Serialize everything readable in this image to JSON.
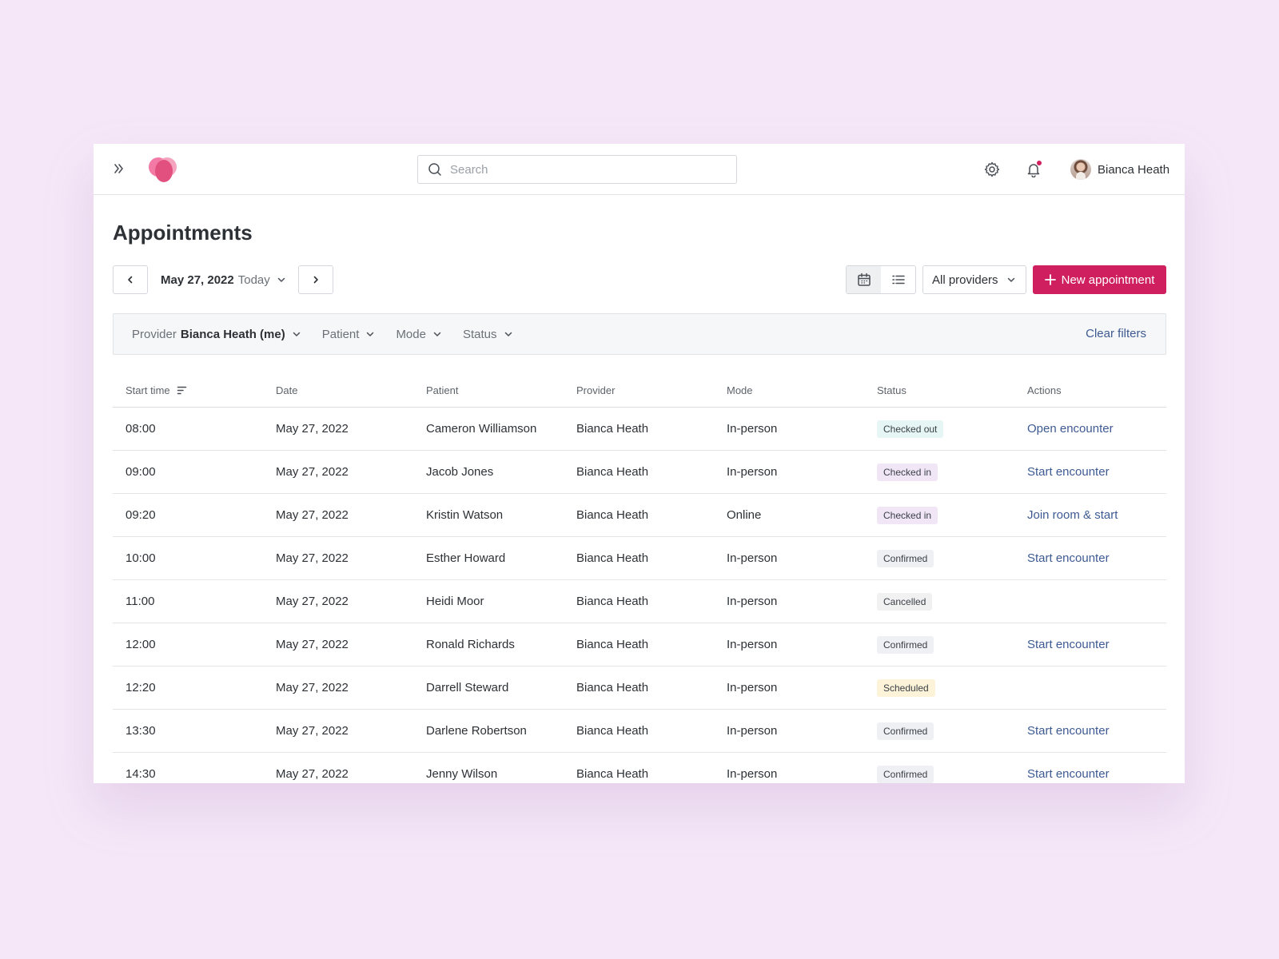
{
  "header": {
    "search_placeholder": "Search",
    "user_name": "Bianca Heath"
  },
  "page": {
    "title": "Appointments",
    "date": "May 27, 2022",
    "today_label": "Today",
    "providers_select": "All providers",
    "new_appointment_label": "New appointment"
  },
  "filters": {
    "provider_label": "Provider",
    "provider_value": "Bianca Heath (me)",
    "patient_label": "Patient",
    "mode_label": "Mode",
    "status_label": "Status",
    "clear_label": "Clear filters"
  },
  "table": {
    "columns": [
      "Start time",
      "Date",
      "Patient",
      "Provider",
      "Mode",
      "Status",
      "Actions"
    ],
    "rows": [
      {
        "time": "08:00",
        "date": "May 27, 2022",
        "patient": "Cameron Williamson",
        "provider": "Bianca Heath",
        "mode": "In-person",
        "status": "Checked out",
        "action": "Open encounter"
      },
      {
        "time": "09:00",
        "date": "May 27, 2022",
        "patient": "Jacob Jones",
        "provider": "Bianca Heath",
        "mode": "In-person",
        "status": "Checked in",
        "action": "Start encounter"
      },
      {
        "time": "09:20",
        "date": "May 27, 2022",
        "patient": "Kristin Watson",
        "provider": "Bianca Heath",
        "mode": "Online",
        "status": "Checked in",
        "action": "Join room & start"
      },
      {
        "time": "10:00",
        "date": "May 27, 2022",
        "patient": "Esther Howard",
        "provider": "Bianca Heath",
        "mode": "In-person",
        "status": "Confirmed",
        "action": "Start encounter"
      },
      {
        "time": "11:00",
        "date": "May 27, 2022",
        "patient": "Heidi Moor",
        "provider": "Bianca Heath",
        "mode": "In-person",
        "status": "Cancelled",
        "action": ""
      },
      {
        "time": "12:00",
        "date": "May 27, 2022",
        "patient": "Ronald Richards",
        "provider": "Bianca Heath",
        "mode": "In-person",
        "status": "Confirmed",
        "action": "Start encounter"
      },
      {
        "time": "12:20",
        "date": "May 27, 2022",
        "patient": "Darrell Steward",
        "provider": "Bianca Heath",
        "mode": "In-person",
        "status": "Scheduled",
        "action": ""
      },
      {
        "time": "13:30",
        "date": "May 27, 2022",
        "patient": "Darlene Robertson",
        "provider": "Bianca Heath",
        "mode": "In-person",
        "status": "Confirmed",
        "action": "Start encounter"
      },
      {
        "time": "14:30",
        "date": "May 27, 2022",
        "patient": "Jenny Wilson",
        "provider": "Bianca Heath",
        "mode": "In-person",
        "status": "Confirmed",
        "action": "Start encounter"
      }
    ]
  },
  "status_colors": {
    "Checked out": "#e6f6f4",
    "Checked in": "#f1e6f6",
    "Confirmed": "#eef0f3",
    "Cancelled": "#f1f1f2",
    "Scheduled": "#fdf3d9"
  },
  "colors": {
    "accent": "#cf1f5e",
    "link": "#3e5a93",
    "background": "#f5e7f8"
  },
  "icons": {
    "expand": "double-chevron-right-icon",
    "logo": "logo-icon",
    "search": "search-icon",
    "settings": "gear-icon",
    "notifications": "bell-icon",
    "calendar_view": "calendar-icon",
    "list_view": "list-icon",
    "add": "plus-icon",
    "sort": "sort-icon"
  }
}
